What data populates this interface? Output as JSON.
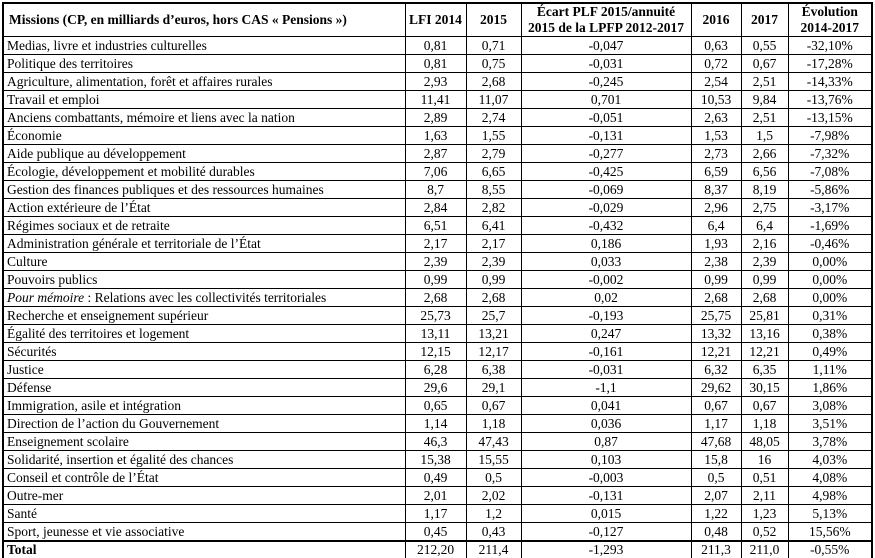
{
  "page": {
    "background_color": "#ffffff",
    "text_color": "#000000",
    "border_color": "#000000"
  },
  "table": {
    "headers": {
      "missions": "Missions (CP, en milliards d’euros, hors CAS « Pensions »)",
      "lfi_2014": "LFI 2014",
      "y2015": "2015",
      "ecart": "Écart PLF 2015/annuité\n2015 de la LPFP 2012-2017",
      "y2016": "2016",
      "y2017": "2017",
      "evolution": "Évolution\n2014-2017"
    },
    "rows": [
      {
        "mission": "Medias, livre et industries culturelles",
        "values": [
          "0,81",
          "0,71",
          "-0,047",
          "0,63",
          "0,55",
          "-32,10%"
        ]
      },
      {
        "mission": "Politique des territoires",
        "values": [
          "0,81",
          "0,75",
          "-0,031",
          "0,72",
          "0,67",
          "-17,28%"
        ]
      },
      {
        "mission": "Agriculture, alimentation, forêt et affaires rurales",
        "values": [
          "2,93",
          "2,68",
          "-0,245",
          "2,54",
          "2,51",
          "-14,33%"
        ]
      },
      {
        "mission": "Travail et emploi",
        "values": [
          "11,41",
          "11,07",
          "0,701",
          "10,53",
          "9,84",
          "-13,76%"
        ]
      },
      {
        "mission": "Anciens combattants, mémoire et liens avec la nation",
        "values": [
          "2,89",
          "2,74",
          "-0,051",
          "2,63",
          "2,51",
          "-13,15%"
        ]
      },
      {
        "mission": "Économie",
        "values": [
          "1,63",
          "1,55",
          "-0,131",
          "1,53",
          "1,5",
          "-7,98%"
        ]
      },
      {
        "mission": "Aide publique au développement",
        "values": [
          "2,87",
          "2,79",
          "-0,277",
          "2,73",
          "2,66",
          "-7,32%"
        ]
      },
      {
        "mission": "Écologie, développement et mobilité durables",
        "values": [
          "7,06",
          "6,65",
          "-0,425",
          "6,59",
          "6,56",
          "-7,08%"
        ]
      },
      {
        "mission": "Gestion des finances publiques et des ressources humaines",
        "values": [
          "8,7",
          "8,55",
          "-0,069",
          "8,37",
          "8,19",
          "-5,86%"
        ]
      },
      {
        "mission": "Action extérieure de l’État",
        "values": [
          "2,84",
          "2,82",
          "-0,029",
          "2,96",
          "2,75",
          "-3,17%"
        ]
      },
      {
        "mission": "Régimes sociaux et de retraite",
        "values": [
          "6,51",
          "6,41",
          "-0,432",
          "6,4",
          "6,4",
          "-1,69%"
        ]
      },
      {
        "mission": "Administration générale et territoriale de l’État",
        "values": [
          "2,17",
          "2,17",
          "0,186",
          "1,93",
          "2,16",
          "-0,46%"
        ]
      },
      {
        "mission": "Culture",
        "values": [
          "2,39",
          "2,39",
          "0,033",
          "2,38",
          "2,39",
          "0,00%"
        ]
      },
      {
        "mission": "Pouvoirs publics",
        "values": [
          "0,99",
          "0,99",
          "-0,002",
          "0,99",
          "0,99",
          "0,00%"
        ]
      },
      {
        "mission_italic": "Pour mémoire",
        "mission": " : Relations avec les collectivités territoriales",
        "values": [
          "2,68",
          "2,68",
          "0,02",
          "2,68",
          "2,68",
          "0,00%"
        ]
      },
      {
        "mission": "Recherche et enseignement supérieur",
        "values": [
          "25,73",
          "25,7",
          "-0,193",
          "25,75",
          "25,81",
          "0,31%"
        ]
      },
      {
        "mission": "Égalité des territoires et logement",
        "values": [
          "13,11",
          "13,21",
          "0,247",
          "13,32",
          "13,16",
          "0,38%"
        ]
      },
      {
        "mission": "Sécurités",
        "values": [
          "12,15",
          "12,17",
          "-0,161",
          "12,21",
          "12,21",
          "0,49%"
        ]
      },
      {
        "mission": "Justice",
        "values": [
          "6,28",
          "6,38",
          "-0,031",
          "6,32",
          "6,35",
          "1,11%"
        ]
      },
      {
        "mission": "Défense",
        "values": [
          "29,6",
          "29,1",
          "-1,1",
          "29,62",
          "30,15",
          "1,86%"
        ]
      },
      {
        "mission": "Immigration, asile et intégration",
        "values": [
          "0,65",
          "0,67",
          "0,041",
          "0,67",
          "0,67",
          "3,08%"
        ]
      },
      {
        "mission": "Direction de l’action du Gouvernement",
        "values": [
          "1,14",
          "1,18",
          "0,036",
          "1,17",
          "1,18",
          "3,51%"
        ]
      },
      {
        "mission": "Enseignement scolaire",
        "values": [
          "46,3",
          "47,43",
          "0,87",
          "47,68",
          "48,05",
          "3,78%"
        ]
      },
      {
        "mission": "Solidarité, insertion et égalité des chances",
        "values": [
          "15,38",
          "15,55",
          "0,103",
          "15,8",
          "16",
          "4,03%"
        ]
      },
      {
        "mission": "Conseil et contrôle de l’État",
        "values": [
          "0,49",
          "0,5",
          "-0,003",
          "0,5",
          "0,51",
          "4,08%"
        ]
      },
      {
        "mission": "Outre-mer",
        "values": [
          "2,01",
          "2,02",
          "-0,131",
          "2,07",
          "2,11",
          "4,98%"
        ]
      },
      {
        "mission": "Santé",
        "values": [
          "1,17",
          "1,2",
          "0,015",
          "1,22",
          "1,23",
          "5,13%"
        ]
      },
      {
        "mission": "Sport, jeunesse et vie associative",
        "values": [
          "0,45",
          "0,43",
          "-0,127",
          "0,48",
          "0,52",
          "15,56%"
        ]
      }
    ],
    "total": {
      "label": "Total",
      "values": [
        "212,20",
        "211,4",
        "-1,293",
        "211,3",
        "211,0",
        "-0,55%"
      ]
    }
  }
}
